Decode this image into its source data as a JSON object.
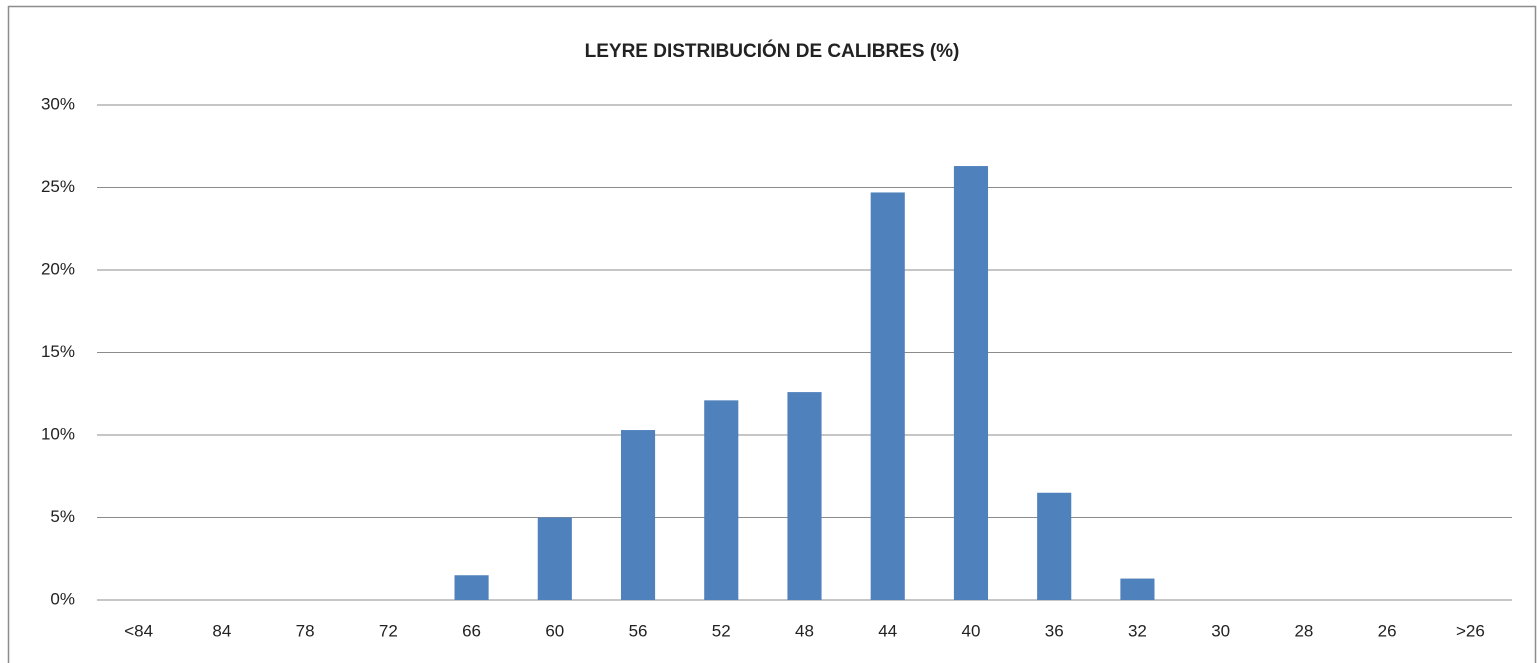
{
  "chart_data": {
    "type": "bar",
    "title": "LEYRE DISTRIBUCIÓN DE CALIBRES (%)",
    "categories": [
      "<84",
      "84",
      "78",
      "72",
      "66",
      "60",
      "56",
      "52",
      "48",
      "44",
      "40",
      "36",
      "32",
      "30",
      "28",
      "26",
      ">26"
    ],
    "values": [
      0,
      0,
      0,
      0,
      1.5,
      5.0,
      10.3,
      12.1,
      12.6,
      24.7,
      26.3,
      6.5,
      1.3,
      0,
      0,
      0,
      0
    ],
    "color": "#4f81bd",
    "ylim": [
      0,
      30
    ],
    "yticks": [
      {
        "value": 0,
        "label": "0%"
      },
      {
        "value": 5,
        "label": "5%"
      },
      {
        "value": 10,
        "label": "10%"
      },
      {
        "value": 15,
        "label": "15%"
      },
      {
        "value": 20,
        "label": "20%"
      },
      {
        "value": 25,
        "label": "25%"
      },
      {
        "value": 30,
        "label": "30%"
      }
    ],
    "grid": true
  }
}
